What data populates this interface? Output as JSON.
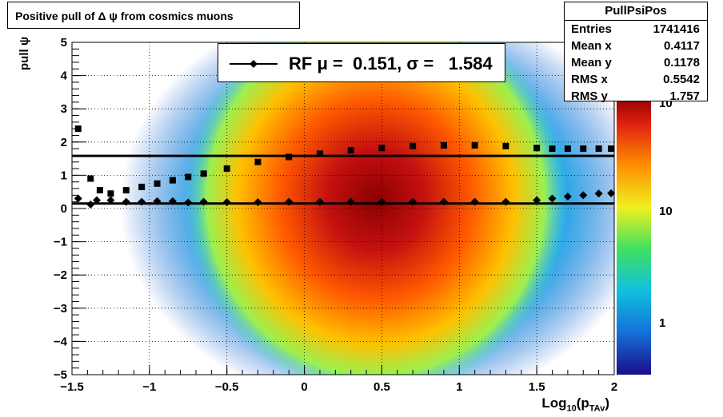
{
  "title": "Positive pull of Δ ψ from cosmics muons",
  "stats": {
    "name": "PullPsiPos",
    "rows": [
      {
        "label": "Entries",
        "value": "1741416"
      },
      {
        "label": "Mean x",
        "value": "0.4117"
      },
      {
        "label": "Mean y",
        "value": "0.1178"
      },
      {
        "label": "RMS x",
        "value": "0.5542"
      },
      {
        "label": "RMS y",
        "value": "1.757"
      }
    ]
  },
  "legend": {
    "text": "RF μ =  0.151, σ =   1.584"
  },
  "axes": {
    "ylabel": "pull ψ",
    "xlabel_main": "Log",
    "xlabel_sub": "10",
    "xlabel_mid": "(p",
    "xlabel_sub2": "TAv",
    "xlabel_end": ")"
  },
  "colors": {
    "marker": "#000000",
    "fit_line": "#000000"
  },
  "chart_data": {
    "type": "heatmap",
    "title": "Positive pull of Δ ψ from cosmics muons",
    "xlim": [
      -1.5,
      2
    ],
    "ylim": [
      -5,
      5
    ],
    "x_ticks": [
      "−1.5",
      "−1",
      "−0.5",
      "0",
      "0.5",
      "1",
      "1.5",
      "2"
    ],
    "x_tick_values": [
      -1.5,
      -1,
      -0.5,
      0,
      0.5,
      1,
      1.5,
      2
    ],
    "y_ticks": [
      "5",
      "4",
      "3",
      "2",
      "1",
      "0",
      "−1",
      "−2",
      "−3",
      "−4",
      "−5"
    ],
    "y_tick_values": [
      5,
      4,
      3,
      2,
      1,
      0,
      -1,
      -2,
      -3,
      -4,
      -5
    ],
    "z_scale": "log",
    "z_ticks": [
      "1",
      "10",
      "10"
    ],
    "z_tick_values": [
      1,
      10,
      100
    ],
    "grid": true,
    "mean_markers": {
      "marker": "diamond",
      "x": [
        -1.46,
        -1.38,
        -1.34,
        -1.25,
        -1.15,
        -1.05,
        -0.95,
        -0.85,
        -0.75,
        -0.65,
        -0.5,
        -0.3,
        -0.1,
        0.1,
        0.3,
        0.5,
        0.7,
        0.9,
        1.1,
        1.3,
        1.5,
        1.6,
        1.7,
        1.8,
        1.9,
        1.98
      ],
      "y": [
        0.3,
        0.12,
        0.25,
        0.25,
        0.2,
        0.2,
        0.22,
        0.22,
        0.18,
        0.2,
        0.19,
        0.19,
        0.2,
        0.2,
        0.2,
        0.2,
        0.2,
        0.2,
        0.2,
        0.2,
        0.25,
        0.3,
        0.36,
        0.4,
        0.45,
        0.46
      ]
    },
    "rms_markers": {
      "marker": "square",
      "x": [
        -1.46,
        -1.38,
        -1.32,
        -1.25,
        -1.15,
        -1.05,
        -0.95,
        -0.85,
        -0.75,
        -0.65,
        -0.5,
        -0.3,
        -0.1,
        0.1,
        0.3,
        0.5,
        0.7,
        0.9,
        1.1,
        1.3,
        1.5,
        1.6,
        1.7,
        1.8,
        1.9,
        1.98
      ],
      "y": [
        2.4,
        0.9,
        0.55,
        0.45,
        0.55,
        0.65,
        0.75,
        0.85,
        0.95,
        1.05,
        1.2,
        1.4,
        1.55,
        1.65,
        1.75,
        1.82,
        1.88,
        1.9,
        1.9,
        1.88,
        1.82,
        1.8,
        1.8,
        1.8,
        1.8,
        1.8
      ]
    },
    "fit_lines": [
      {
        "y": 0.151
      },
      {
        "y": 1.584
      }
    ]
  }
}
